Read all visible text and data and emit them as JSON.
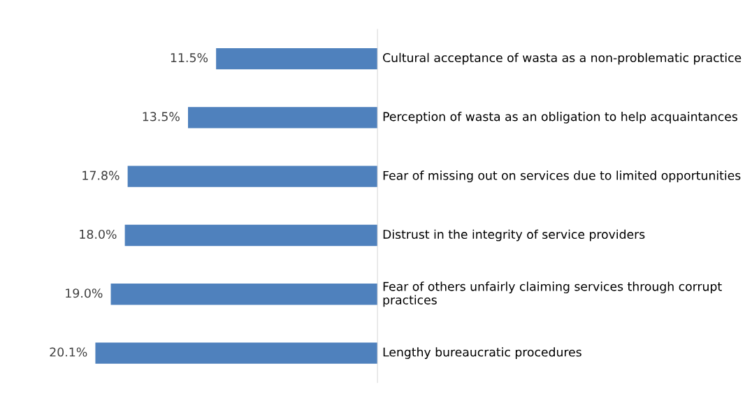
{
  "chart_data": {
    "type": "bar",
    "orientation": "horizontal",
    "categories": [
      "Cultural acceptance of wasta as a non-problematic practice",
      "Perception of wasta as an obligation to help acquaintances",
      "Fear of missing out on services due to limited opportunities",
      "Distrust in the integrity of service providers",
      "Fear of others unfairly claiming services through corrupt practices",
      "Lengthy bureaucratic procedures"
    ],
    "values": [
      11.5,
      13.5,
      17.8,
      18.0,
      19.0,
      20.1
    ],
    "value_labels": [
      "11.5%",
      "13.5%",
      "17.8%",
      "18.0%",
      "19.0%",
      "20.1%"
    ],
    "color": "#4f81bd"
  }
}
